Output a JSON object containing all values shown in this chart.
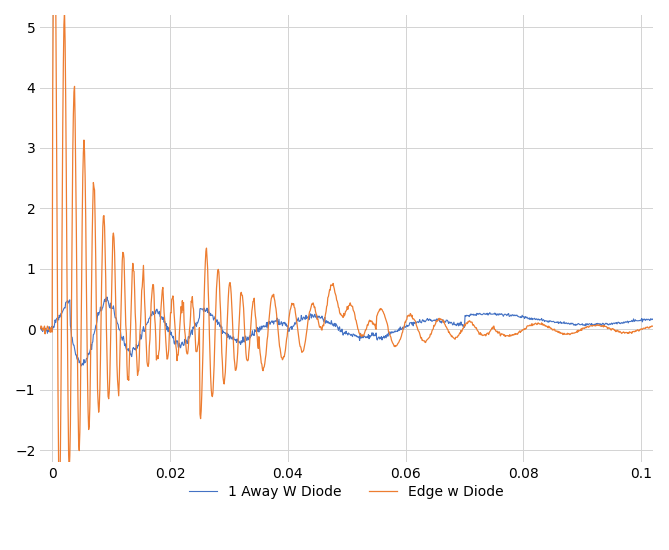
{
  "title": "",
  "xlabel": "",
  "ylabel": "",
  "xlim": [
    -0.002,
    0.102
  ],
  "ylim": [
    -2.2,
    5.2
  ],
  "yticks": [
    -2,
    -1,
    0,
    1,
    2,
    3,
    4,
    5
  ],
  "xticks": [
    0,
    0.02,
    0.04,
    0.06,
    0.08,
    0.1
  ],
  "xtick_labels": [
    "0",
    "0.02",
    "0.04",
    "0.06",
    "0.08",
    "0.1"
  ],
  "blue_color": "#4472C4",
  "orange_color": "#ED7D31",
  "legend_labels": [
    "1 Away W Diode",
    "Edge w Diode"
  ],
  "background_color": "#ffffff",
  "grid_color": "#d3d3d3",
  "linewidth_blue": 0.8,
  "linewidth_orange": 0.9
}
